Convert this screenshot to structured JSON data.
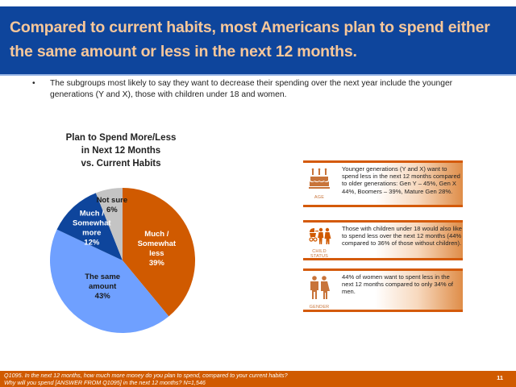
{
  "header": {
    "title": "Compared to current habits, most Americans plan to spend either the same amount or less in the next 12 months."
  },
  "bullet": {
    "marker": "•",
    "text": "The subgroups most likely to say they want to decrease their spending over the next year include the younger generations (Y and X), those with children under 18 and women."
  },
  "chart_data": {
    "type": "pie",
    "title_lines": [
      "Plan to Spend More/Less",
      "in Next 12 Months",
      "vs. Current Habits"
    ],
    "slices": [
      {
        "name": "Much / Somewhat less",
        "label_lines": [
          "Much /",
          "Somewhat",
          "less",
          "39%"
        ],
        "value": 39,
        "color": "#d05a00",
        "text_color": "#ffffff"
      },
      {
        "name": "The same amount",
        "label_lines": [
          "The same",
          "amount",
          "43%"
        ],
        "value": 43,
        "color": "#6fa0ff",
        "text_color": "#1a1a1a"
      },
      {
        "name": "Much / Somewhat more",
        "label_lines": [
          "Much /",
          "Somewhat",
          "more",
          "12%"
        ],
        "value": 12,
        "color": "#0e459c",
        "text_color": "#ffffff"
      },
      {
        "name": "Not sure",
        "label_lines": [
          "Not sure",
          "6%"
        ],
        "value": 6,
        "color": "#c4c4c4",
        "text_color": "#1a1a1a"
      }
    ],
    "start": "12 o'clock",
    "direction": "clockwise"
  },
  "cards": [
    {
      "icon": "birthday-cake-icon",
      "icon_label": [
        "AGE"
      ],
      "text": "Younger generations (Y and X) want to spend less in the next 12 months compared to older generations: Gen Y – 45%, Gen X 44%, Boomers – 39%, Mature Gen 28%."
    },
    {
      "icon": "family-stroller-icon",
      "icon_label": [
        "CHILD",
        "STATUS"
      ],
      "text": "Those with children  under 18 would also like to spend less over the next 12 months (44% compared to 36% of those without children)."
    },
    {
      "icon": "man-woman-icon",
      "icon_label": [
        "GENDER"
      ],
      "text": "44% of women want to spent less in the next 12 months compared to only 34% of men."
    }
  ],
  "footer": {
    "note_line1": "Q1095. In the next 12 months, how much more money do you plan to spend, compared to  your current habits?",
    "note_line2": "Why will you spend [ANSWER FROM Q1095] in the next 12 months?  N=1,546",
    "page_number": "11"
  },
  "colors": {
    "brand_blue": "#0e459c",
    "brand_orange": "#d05a00",
    "title_text": "#f7c79a",
    "icon_brown": "#c8743a"
  }
}
